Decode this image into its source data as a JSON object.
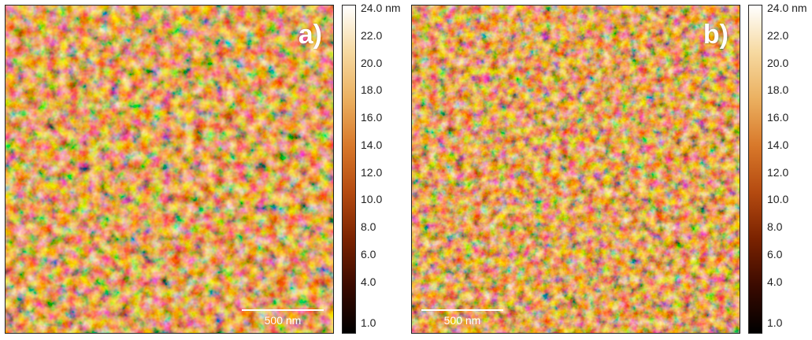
{
  "panels": [
    {
      "id": "a",
      "label": "a)",
      "scalebar": "500 nm",
      "seed": 7
    },
    {
      "id": "b",
      "label": "b)",
      "scalebar": "500 nm",
      "seed": 19
    }
  ],
  "colorbar": {
    "unit": "nm",
    "ticks": [
      "24.0 nm",
      "22.0",
      "20.0",
      "18.0",
      "16.0",
      "14.0",
      "12.0",
      "10.0",
      "8.0",
      "6.0",
      "4.0",
      "1.0"
    ],
    "tick_values": [
      24.0,
      22.0,
      20.0,
      18.0,
      16.0,
      14.0,
      12.0,
      10.0,
      8.0,
      6.0,
      4.0,
      1.0
    ],
    "range": [
      1.0,
      24.0
    ],
    "colors": [
      "#000000",
      "#3a0a00",
      "#7a2200",
      "#b44a10",
      "#d8782a",
      "#ebb060",
      "#f6d9a0",
      "#ffffff"
    ]
  }
}
